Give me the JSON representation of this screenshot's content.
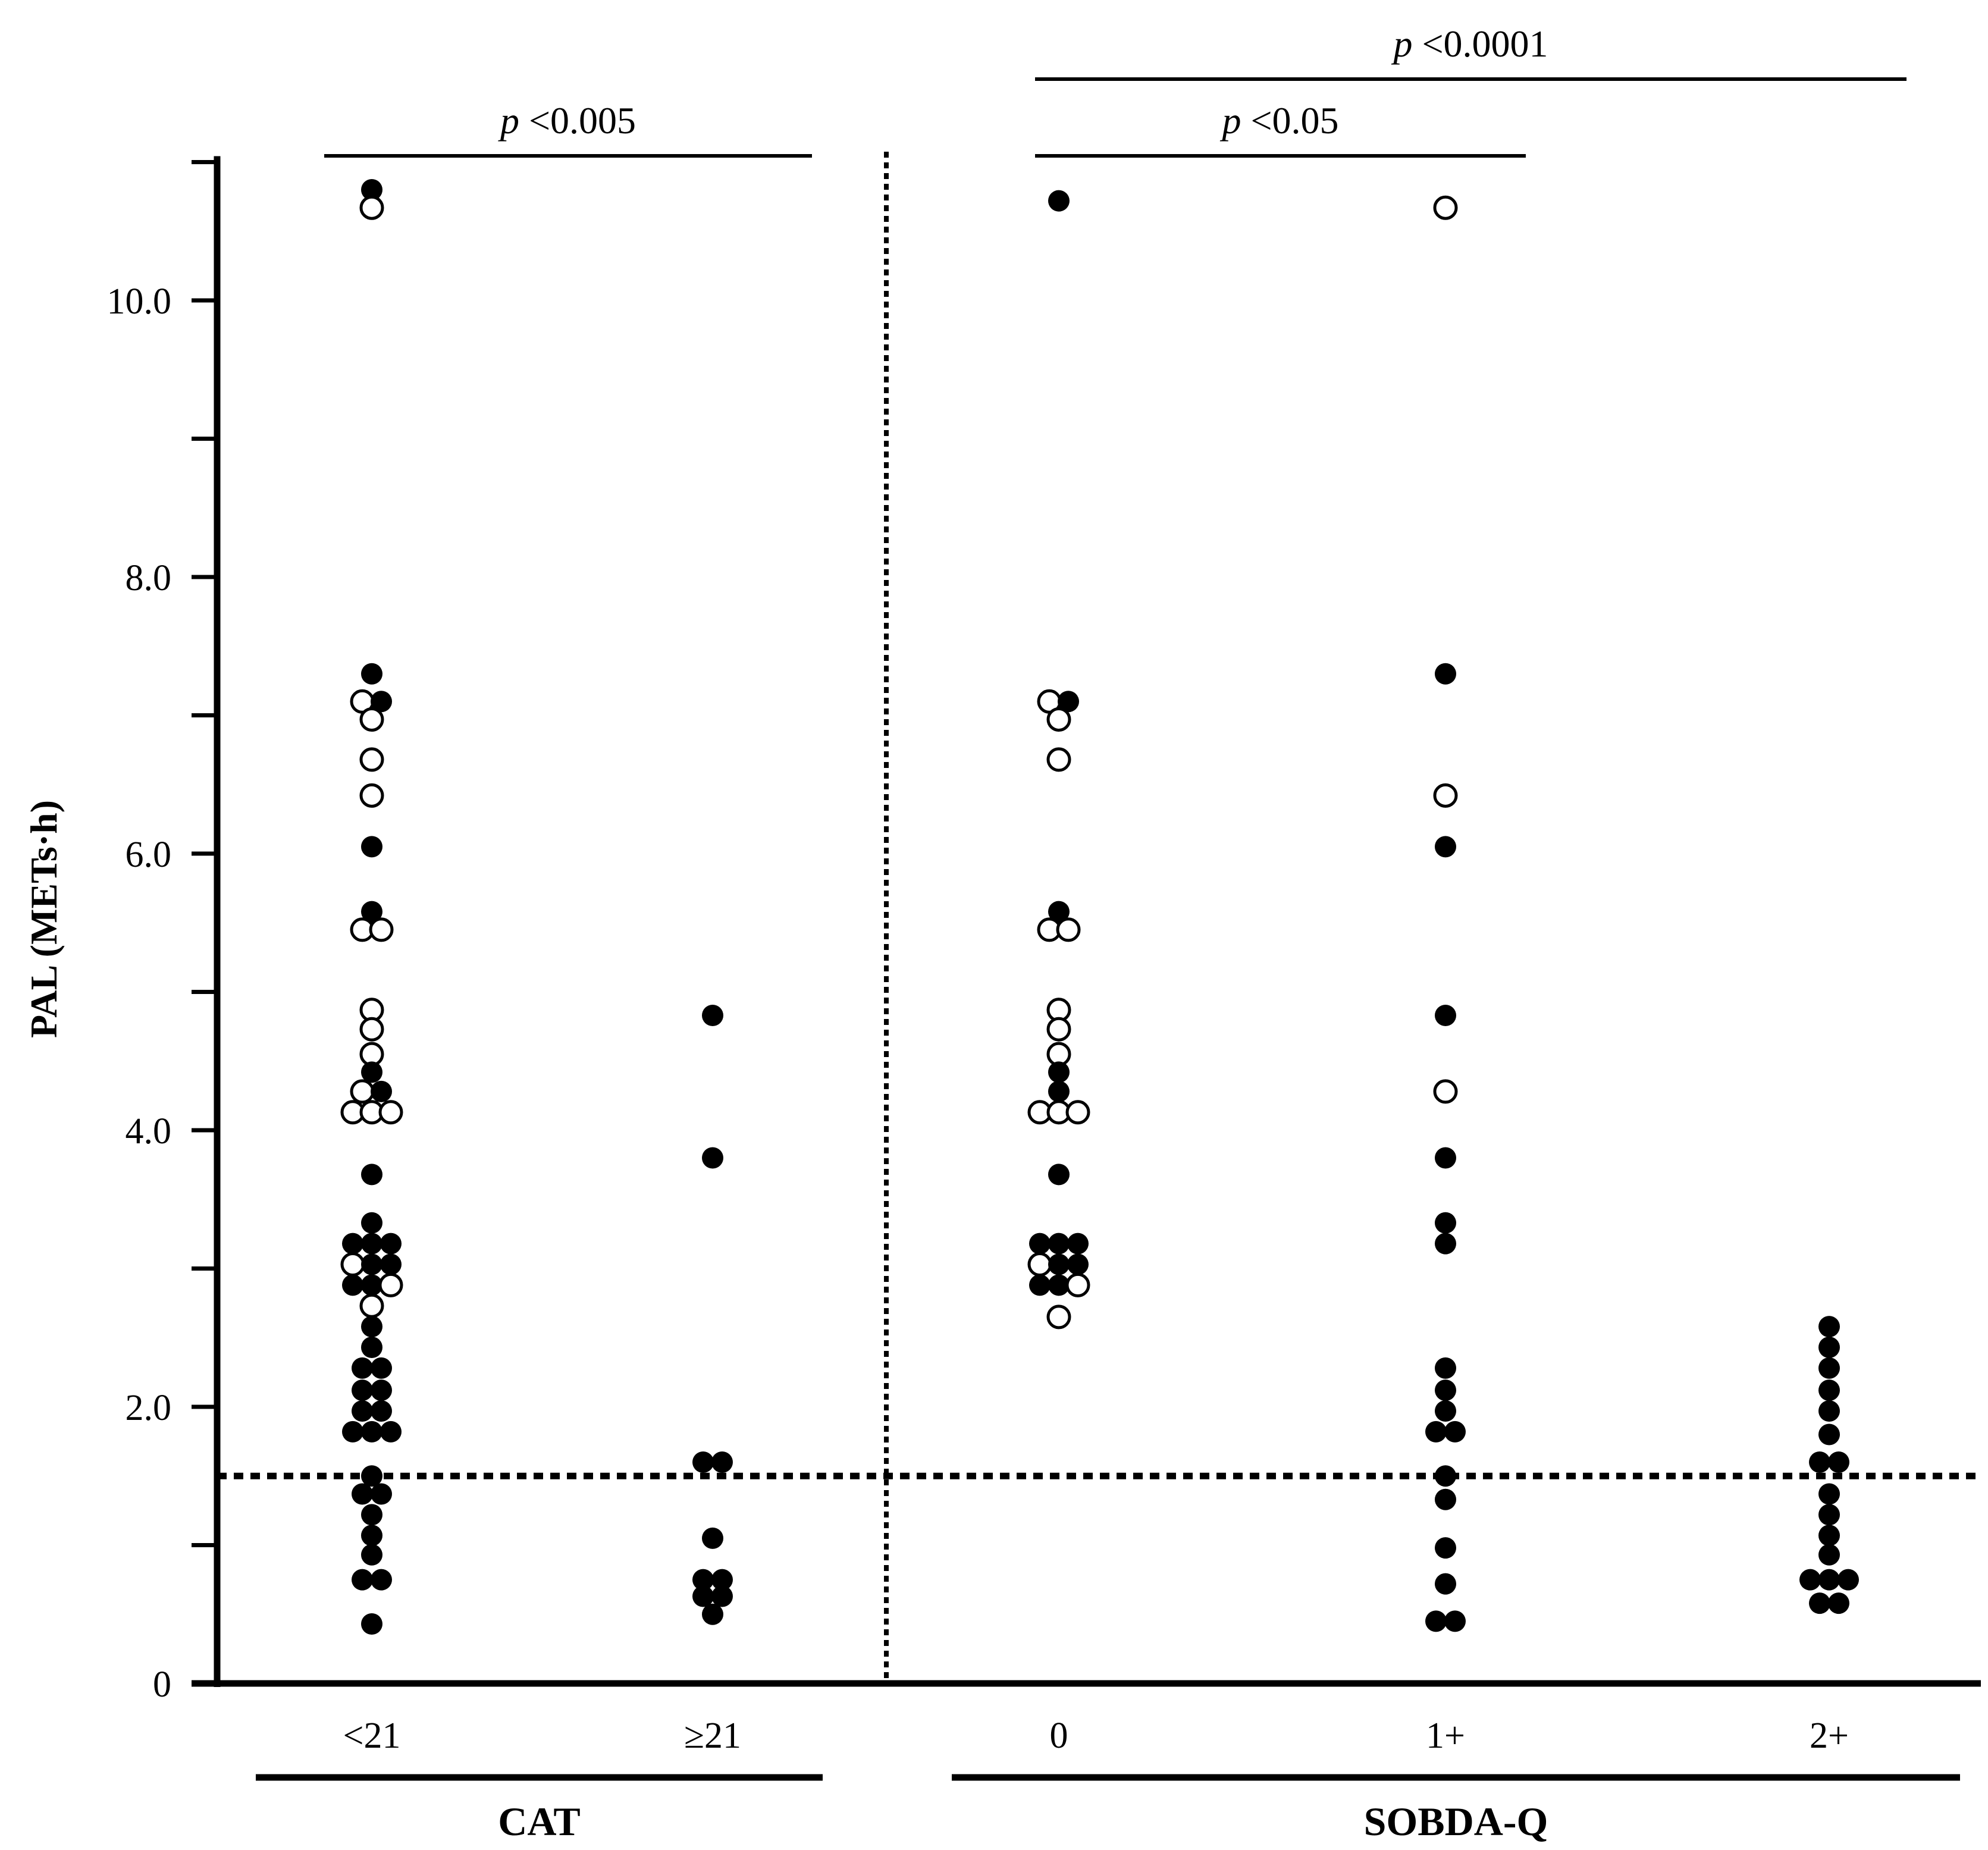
{
  "chart_data": {
    "type": "scatter",
    "subtype": "dot-plot",
    "title": "",
    "ylabel": "PAL (METs·h)",
    "xlabel": "",
    "ylim": [
      0,
      11.0
    ],
    "yticks_labeled": [
      {
        "value": 0,
        "label": "0"
      },
      {
        "value": 2,
        "label": "2.0"
      },
      {
        "value": 4,
        "label": "4.0"
      },
      {
        "value": 6,
        "label": "6.0"
      },
      {
        "value": 8,
        "label": "8.0"
      },
      {
        "value": 10,
        "label": "10.0"
      }
    ],
    "yticks_minor": [
      1,
      3,
      5,
      7,
      9,
      11
    ],
    "reference_line": {
      "y": 1.5,
      "style": "dotted"
    },
    "group_separator": "dotted-vertical",
    "marker_legend": {
      "filled": "filled circle",
      "open": "open circle"
    },
    "groups": [
      {
        "label": "CAT",
        "categories": [
          "<21",
          "≥21"
        ]
      },
      {
        "label": "SOBDA-Q",
        "categories": [
          "0",
          "1+",
          "2+"
        ]
      }
    ],
    "categories": [
      "<21",
      "≥21",
      "0",
      "1+",
      "2+"
    ],
    "series": [
      {
        "name": "<21",
        "points": [
          {
            "y": 10.8,
            "o": 0,
            "f": 1
          },
          {
            "y": 10.67,
            "o": 0,
            "f": 0
          },
          {
            "y": 7.3,
            "o": 0,
            "f": 1
          },
          {
            "y": 7.1,
            "o": -0.5,
            "f": 0
          },
          {
            "y": 7.1,
            "o": 0.5,
            "f": 1
          },
          {
            "y": 6.97,
            "o": 0,
            "f": 0
          },
          {
            "y": 6.68,
            "o": 0,
            "f": 0
          },
          {
            "y": 6.42,
            "o": 0,
            "f": 0
          },
          {
            "y": 6.05,
            "o": 0,
            "f": 1
          },
          {
            "y": 5.58,
            "o": 0,
            "f": 1
          },
          {
            "y": 5.45,
            "o": -0.5,
            "f": 0
          },
          {
            "y": 5.45,
            "o": 0.5,
            "f": 0
          },
          {
            "y": 4.87,
            "o": 0,
            "f": 0
          },
          {
            "y": 4.73,
            "o": 0,
            "f": 0
          },
          {
            "y": 4.55,
            "o": 0,
            "f": 0
          },
          {
            "y": 4.42,
            "o": 0,
            "f": 1
          },
          {
            "y": 4.28,
            "o": -0.5,
            "f": 0
          },
          {
            "y": 4.28,
            "o": 0.5,
            "f": 1
          },
          {
            "y": 4.13,
            "o": -1,
            "f": 0
          },
          {
            "y": 4.13,
            "o": 0,
            "f": 0
          },
          {
            "y": 4.13,
            "o": 1,
            "f": 0
          },
          {
            "y": 3.68,
            "o": 0,
            "f": 1
          },
          {
            "y": 3.33,
            "o": 0,
            "f": 1
          },
          {
            "y": 3.18,
            "o": -1,
            "f": 1
          },
          {
            "y": 3.18,
            "o": 0,
            "f": 1
          },
          {
            "y": 3.18,
            "o": 1,
            "f": 1
          },
          {
            "y": 3.03,
            "o": -1,
            "f": 0
          },
          {
            "y": 3.03,
            "o": 0,
            "f": 1
          },
          {
            "y": 3.03,
            "o": 1,
            "f": 1
          },
          {
            "y": 2.88,
            "o": -1,
            "f": 1
          },
          {
            "y": 2.88,
            "o": 0,
            "f": 1
          },
          {
            "y": 2.88,
            "o": 1,
            "f": 0
          },
          {
            "y": 2.73,
            "o": 0,
            "f": 0
          },
          {
            "y": 2.58,
            "o": 0,
            "f": 1
          },
          {
            "y": 2.43,
            "o": 0,
            "f": 1
          },
          {
            "y": 2.28,
            "o": -0.5,
            "f": 1
          },
          {
            "y": 2.28,
            "o": 0.5,
            "f": 1
          },
          {
            "y": 2.12,
            "o": -0.5,
            "f": 1
          },
          {
            "y": 2.12,
            "o": 0.5,
            "f": 1
          },
          {
            "y": 1.97,
            "o": -0.5,
            "f": 1
          },
          {
            "y": 1.97,
            "o": 0.5,
            "f": 1
          },
          {
            "y": 1.82,
            "o": -1,
            "f": 1
          },
          {
            "y": 1.82,
            "o": 0,
            "f": 1
          },
          {
            "y": 1.82,
            "o": 1,
            "f": 1
          },
          {
            "y": 1.5,
            "o": 0,
            "f": 1
          },
          {
            "y": 1.37,
            "o": -0.5,
            "f": 1
          },
          {
            "y": 1.37,
            "o": 0.5,
            "f": 1
          },
          {
            "y": 1.22,
            "o": 0,
            "f": 1
          },
          {
            "y": 1.07,
            "o": 0,
            "f": 1
          },
          {
            "y": 0.93,
            "o": 0,
            "f": 1
          },
          {
            "y": 0.75,
            "o": -0.5,
            "f": 1
          },
          {
            "y": 0.75,
            "o": 0.5,
            "f": 1
          },
          {
            "y": 0.43,
            "o": 0,
            "f": 1
          }
        ]
      },
      {
        "name": "≥21",
        "points": [
          {
            "y": 4.83,
            "o": 0,
            "f": 1
          },
          {
            "y": 3.8,
            "o": 0,
            "f": 1
          },
          {
            "y": 1.6,
            "o": -0.5,
            "f": 1
          },
          {
            "y": 1.6,
            "o": 0.5,
            "f": 1
          },
          {
            "y": 1.05,
            "o": 0,
            "f": 1
          },
          {
            "y": 0.75,
            "o": -0.5,
            "f": 1
          },
          {
            "y": 0.75,
            "o": 0.5,
            "f": 1
          },
          {
            "y": 0.63,
            "o": -0.5,
            "f": 1
          },
          {
            "y": 0.63,
            "o": 0.5,
            "f": 1
          },
          {
            "y": 0.5,
            "o": 0,
            "f": 1
          }
        ]
      },
      {
        "name": "0",
        "points": [
          {
            "y": 10.72,
            "o": 0,
            "f": 1
          },
          {
            "y": 7.1,
            "o": -0.5,
            "f": 0
          },
          {
            "y": 7.1,
            "o": 0.5,
            "f": 1
          },
          {
            "y": 6.97,
            "o": 0,
            "f": 0
          },
          {
            "y": 6.68,
            "o": 0,
            "f": 0
          },
          {
            "y": 5.58,
            "o": 0,
            "f": 1
          },
          {
            "y": 5.45,
            "o": -0.5,
            "f": 0
          },
          {
            "y": 5.45,
            "o": 0.5,
            "f": 0
          },
          {
            "y": 4.87,
            "o": 0,
            "f": 0
          },
          {
            "y": 4.73,
            "o": 0,
            "f": 0
          },
          {
            "y": 4.55,
            "o": 0,
            "f": 0
          },
          {
            "y": 4.42,
            "o": 0,
            "f": 1
          },
          {
            "y": 4.28,
            "o": 0,
            "f": 1
          },
          {
            "y": 4.13,
            "o": -1,
            "f": 0
          },
          {
            "y": 4.13,
            "o": 0,
            "f": 0
          },
          {
            "y": 4.13,
            "o": 1,
            "f": 0
          },
          {
            "y": 3.68,
            "o": 0,
            "f": 1
          },
          {
            "y": 3.18,
            "o": -1,
            "f": 1
          },
          {
            "y": 3.18,
            "o": 0,
            "f": 1
          },
          {
            "y": 3.18,
            "o": 1,
            "f": 1
          },
          {
            "y": 3.03,
            "o": -1,
            "f": 0
          },
          {
            "y": 3.03,
            "o": 0,
            "f": 1
          },
          {
            "y": 3.03,
            "o": 1,
            "f": 1
          },
          {
            "y": 2.88,
            "o": -1,
            "f": 1
          },
          {
            "y": 2.88,
            "o": 0,
            "f": 1
          },
          {
            "y": 2.88,
            "o": 1,
            "f": 0
          },
          {
            "y": 2.65,
            "o": 0,
            "f": 0
          }
        ]
      },
      {
        "name": "1+",
        "points": [
          {
            "y": 10.67,
            "o": 0,
            "f": 0
          },
          {
            "y": 7.3,
            "o": 0,
            "f": 1
          },
          {
            "y": 6.42,
            "o": 0,
            "f": 0
          },
          {
            "y": 6.05,
            "o": 0,
            "f": 1
          },
          {
            "y": 4.83,
            "o": 0,
            "f": 1
          },
          {
            "y": 4.28,
            "o": 0,
            "f": 0
          },
          {
            "y": 3.8,
            "o": 0,
            "f": 1
          },
          {
            "y": 3.33,
            "o": 0,
            "f": 1
          },
          {
            "y": 3.18,
            "o": 0,
            "f": 1
          },
          {
            "y": 2.28,
            "o": 0,
            "f": 1
          },
          {
            "y": 2.12,
            "o": 0,
            "f": 1
          },
          {
            "y": 1.97,
            "o": 0,
            "f": 1
          },
          {
            "y": 1.82,
            "o": -0.5,
            "f": 1
          },
          {
            "y": 1.82,
            "o": 0.5,
            "f": 1
          },
          {
            "y": 1.5,
            "o": 0,
            "f": 1
          },
          {
            "y": 1.33,
            "o": 0,
            "f": 1
          },
          {
            "y": 0.98,
            "o": 0,
            "f": 1
          },
          {
            "y": 0.72,
            "o": 0,
            "f": 1
          },
          {
            "y": 0.45,
            "o": -0.5,
            "f": 1
          },
          {
            "y": 0.45,
            "o": 0.5,
            "f": 1
          }
        ]
      },
      {
        "name": "2+",
        "points": [
          {
            "y": 2.58,
            "o": 0,
            "f": 1
          },
          {
            "y": 2.43,
            "o": 0,
            "f": 1
          },
          {
            "y": 2.28,
            "o": 0,
            "f": 1
          },
          {
            "y": 2.12,
            "o": 0,
            "f": 1
          },
          {
            "y": 1.97,
            "o": 0,
            "f": 1
          },
          {
            "y": 1.8,
            "o": 0,
            "f": 1
          },
          {
            "y": 1.6,
            "o": -0.5,
            "f": 1
          },
          {
            "y": 1.6,
            "o": 0.5,
            "f": 1
          },
          {
            "y": 1.37,
            "o": 0,
            "f": 1
          },
          {
            "y": 1.22,
            "o": 0,
            "f": 1
          },
          {
            "y": 1.07,
            "o": 0,
            "f": 1
          },
          {
            "y": 0.93,
            "o": 0,
            "f": 1
          },
          {
            "y": 0.75,
            "o": -1,
            "f": 1
          },
          {
            "y": 0.75,
            "o": 0,
            "f": 1
          },
          {
            "y": 0.75,
            "o": 1,
            "f": 1
          },
          {
            "y": 0.58,
            "o": -0.5,
            "f": 1
          },
          {
            "y": 0.58,
            "o": 0.5,
            "f": 1
          }
        ]
      }
    ],
    "significance": [
      {
        "from": "<21",
        "to": "≥21",
        "p_symbol": "p",
        "text": " <0.005"
      },
      {
        "from": "0",
        "to": "1+",
        "p_symbol": "p",
        "text": " <0.05"
      },
      {
        "from": "0",
        "to": "2+",
        "p_symbol": "p",
        "text": " <0.0001"
      }
    ]
  }
}
